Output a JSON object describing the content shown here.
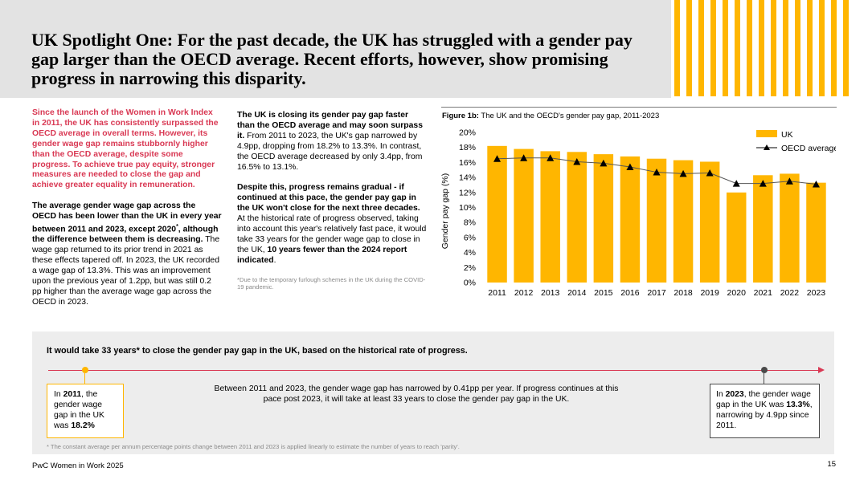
{
  "header": {
    "title": "UK Spotlight One: For the past decade, the UK has struggled with a gender pay gap larger than the OECD average. Recent efforts, however, show promising progress in narrowing this disparity."
  },
  "left_column": {
    "lead": "Since the launch of the Women in Work Index in 2011, the UK has consistently surpassed the OECD average in overall terms. However, its gender wage gap remains stubbornly higher than the OECD average, despite some progress. To achieve true pay equity, stronger measures are needed to close the gap and achieve greater equality in remuneration.",
    "p2_bold": "The average gender wage gap across the OECD has been lower than the UK in every year between 2011 and 2023, except 2020",
    "p2_sup": "*",
    "p2_bold_end": ", although the difference between them is decreasing.",
    "p2_rest": " The wage gap returned to its prior trend in 2021 as these effects tapered off. In 2023, the UK recorded a wage  gap of 13.3%. This was an improvement upon the previous year of 1.2pp, but was still 0.2 pp higher than the average wage gap across the OECD in 2023."
  },
  "middle_column": {
    "p1_bold": "The UK is closing its gender pay gap faster than the OECD average and may soon surpass it.",
    "p1_rest": " From 2011 to 2023, the UK's gap narrowed by 4.9pp, dropping from 18.2% to 13.3%. In contrast, the OECD average decreased by only 3.4pp, from 16.5% to 13.1%.",
    "p2_bold": "Despite this, progress remains gradual - if continued at this pace, the gender pay gap in the UK won't close for the next three decades.",
    "p2_rest": " At the historical rate of progress observed, taking into account this year's relatively fast pace, it would take 33 years for the gender wage gap to close in the UK, ",
    "p2_bold2": "10 years fewer than the 2024 report indicated",
    "p2_end": ".",
    "footnote": "*Due to the temporary furlough schemes in the UK during the COVID-19 pandemic."
  },
  "figure": {
    "caption_bold": "Figure 1b:",
    "caption_rest": " The UK and the OECD's gender pay gap, 2011-2023"
  },
  "chart_data": {
    "type": "bar",
    "title": "The UK and the OECD's gender pay gap, 2011-2023",
    "xlabel": "",
    "ylabel": "Gender pay gap (%)",
    "ylim": [
      0,
      20
    ],
    "yticks": [
      "0%",
      "2%",
      "4%",
      "6%",
      "8%",
      "10%",
      "12%",
      "14%",
      "16%",
      "18%",
      "20%"
    ],
    "ytick_values": [
      0,
      2,
      4,
      6,
      8,
      10,
      12,
      14,
      16,
      18,
      20
    ],
    "categories": [
      "2011",
      "2012",
      "2013",
      "2014",
      "2015",
      "2016",
      "2017",
      "2018",
      "2019",
      "2020",
      "2021",
      "2022",
      "2023"
    ],
    "series": [
      {
        "name": "UK",
        "kind": "bar",
        "color": "#ffb600",
        "values": [
          18.2,
          17.8,
          17.5,
          17.4,
          17.1,
          16.8,
          16.5,
          16.3,
          16.1,
          12.0,
          14.3,
          14.5,
          13.3
        ]
      },
      {
        "name": "OECD average",
        "kind": "line",
        "color": "#000000",
        "values": [
          16.5,
          16.6,
          16.6,
          16.1,
          15.9,
          15.4,
          14.7,
          14.5,
          14.6,
          13.2,
          13.2,
          13.5,
          13.1
        ]
      }
    ],
    "legend_position": "top-right",
    "grid": false
  },
  "band": {
    "title": "It would take 33 years* to close the gender pay gap in the UK, based on the historical rate of progress.",
    "start_pre": "In ",
    "start_year": "2011",
    "start_mid": ", the gender wage gap in the UK was ",
    "start_value": "18.2%",
    "middle": "Between 2011 and 2023, the gender wage gap has narrowed by 0.41pp per year. If progress continues at this pace post 2023, it will take at least 33 years to close the gender pay gap in the UK.",
    "end_pre": "In ",
    "end_year": "2023",
    "end_mid": ", the gender wage gap in the UK was ",
    "end_value": "13.3%",
    "end_rest": ", narrowing by 4.9pp since 2011.",
    "footnote": "* The constant average per annum percentage points change between 2011 and 2023 is applied linearly to estimate the number of years to reach 'parity'."
  },
  "footer": {
    "source": "PwC Women in Work 2025",
    "page": "15"
  },
  "colors": {
    "accent": "#ffb600",
    "highlight": "#d93954",
    "band": "#ededed",
    "header": "#e3e3e3"
  }
}
